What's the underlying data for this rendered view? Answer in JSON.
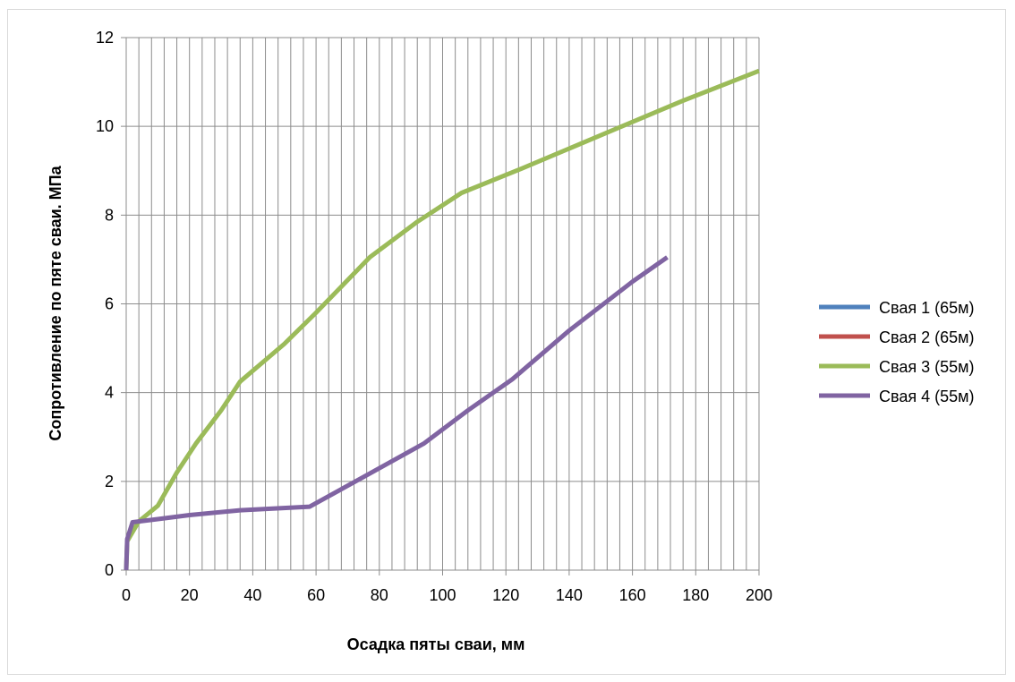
{
  "chart_data": {
    "type": "line",
    "title": "",
    "xlabel": "Осадка пяты сваи, мм",
    "ylabel": "Сопротивление по пяте сваи. МПа",
    "xlim": [
      0,
      200
    ],
    "ylim": [
      0,
      12
    ],
    "x_major_ticks": [
      0,
      20,
      40,
      60,
      80,
      100,
      120,
      140,
      160,
      180,
      200
    ],
    "y_major_ticks": [
      0,
      2,
      4,
      6,
      8,
      10,
      12
    ],
    "x_minor_step": 4,
    "grid": true,
    "legend_position": "right",
    "series": [
      {
        "name": "Свая 1 (65м)",
        "color": "#4f81bd",
        "x": [],
        "y": []
      },
      {
        "name": "Свая 2 (65м)",
        "color": "#c0504d",
        "x": [],
        "y": []
      },
      {
        "name": "Свая 3 (55м)",
        "color": "#9bbb59",
        "x": [
          0,
          0.3,
          4,
          10,
          16,
          22,
          30,
          36,
          50,
          60,
          77,
          92,
          106,
          125,
          150,
          175,
          200
        ],
        "y": [
          0,
          0.65,
          1.1,
          1.45,
          2.2,
          2.85,
          3.6,
          4.25,
          5.1,
          5.8,
          7.05,
          7.85,
          8.5,
          9.05,
          9.8,
          10.55,
          11.25
        ]
      },
      {
        "name": "Свая 4 (55м)",
        "color": "#8064a2",
        "x": [
          0,
          0.3,
          2,
          10,
          20,
          36,
          58,
          75,
          94,
          108,
          122,
          140,
          160,
          171
        ],
        "y": [
          0,
          0.7,
          1.08,
          1.15,
          1.24,
          1.35,
          1.43,
          2.1,
          2.85,
          3.6,
          4.3,
          5.4,
          6.5,
          7.05
        ]
      }
    ]
  }
}
